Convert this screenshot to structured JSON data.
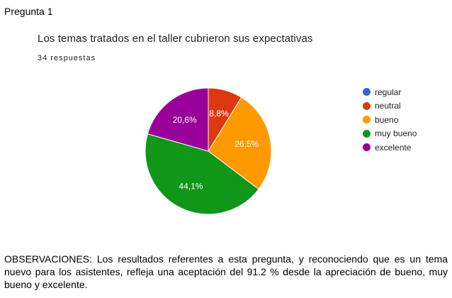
{
  "heading": "Pregunta 1",
  "chart_data": {
    "type": "pie",
    "title": "Los temas tratados en el taller cubrieron sus expectativas",
    "subtitle": "34 respuestas",
    "legend_position": "right",
    "categories": [
      "regular",
      "neutral",
      "bueno",
      "muy bueno",
      "excelente"
    ],
    "values": [
      0,
      8.8,
      26.5,
      44.1,
      20.6
    ],
    "data_labels": [
      "",
      "8,8%",
      "26,5%",
      "44,1%",
      "20,6%"
    ],
    "colors": [
      "#3366cc",
      "#dc3912",
      "#ff9900",
      "#109618",
      "#990099"
    ]
  },
  "observations": "OBSERVACIONES: Los resultados referentes a esta pregunta, y reconociendo que es un tema nuevo para los asistentes, refleja una aceptación del 91.2 % desde la apreciación de bueno, muy bueno y excelente."
}
